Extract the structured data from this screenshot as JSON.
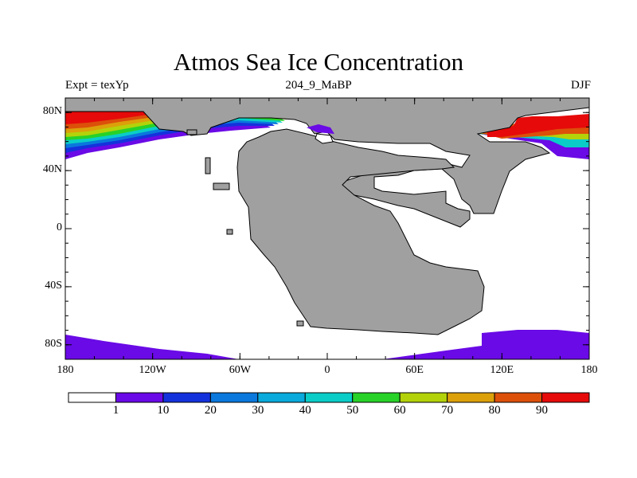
{
  "title": "Atmos Sea Ice Concentration",
  "subtitle_left": "Expt = texYp",
  "subtitle_center": "204_9_MaBP",
  "subtitle_right": "DJF",
  "map": {
    "lon_range": [
      -180,
      180
    ],
    "lat_range": [
      -90,
      90
    ],
    "x_ticks": [
      {
        "value": -180,
        "label": "180"
      },
      {
        "value": -120,
        "label": "120W"
      },
      {
        "value": -60,
        "label": "60W"
      },
      {
        "value": 0,
        "label": "0"
      },
      {
        "value": 60,
        "label": "60E"
      },
      {
        "value": 120,
        "label": "120E"
      },
      {
        "value": 180,
        "label": "180"
      }
    ],
    "y_ticks": [
      {
        "value": 80,
        "label": "80N"
      },
      {
        "value": 40,
        "label": "40N"
      },
      {
        "value": 0,
        "label": "0"
      },
      {
        "value": -40,
        "label": "40S"
      },
      {
        "value": -80,
        "label": "80S"
      }
    ],
    "land_color": "#a0a0a0",
    "ocean_color": "#ffffff"
  },
  "colorbar": {
    "colors": [
      "#ffffff",
      "#6a0ae6",
      "#1432dc",
      "#0a78dc",
      "#0aaadc",
      "#0acdc8",
      "#28d228",
      "#b4d20a",
      "#dca00a",
      "#dc500a",
      "#e60a0a"
    ],
    "labels": [
      "1",
      "10",
      "20",
      "30",
      "40",
      "50",
      "60",
      "70",
      "80",
      "90"
    ]
  }
}
